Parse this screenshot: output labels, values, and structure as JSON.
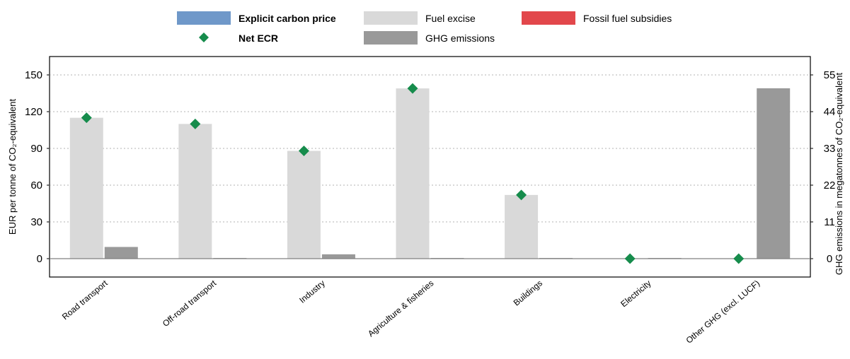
{
  "chart_data": {
    "type": "bar",
    "categories": [
      "Road transport",
      "Off-road transport",
      "Industry",
      "Agriculture & fisheries",
      "Buildings",
      "Electricity",
      "Other GHG (excl. LUCF)"
    ],
    "series": [
      {
        "name": "Explicit carbon price",
        "axis": "left",
        "kind": "bar",
        "color": "#6f98c9",
        "values": [
          0,
          0,
          0,
          0,
          0,
          0,
          0
        ]
      },
      {
        "name": "Fuel excise",
        "axis": "left",
        "kind": "bar",
        "color": "#d9d9d9",
        "values": [
          115,
          110,
          88,
          139,
          52,
          0,
          0
        ]
      },
      {
        "name": "Fossil fuel subsidies",
        "axis": "left",
        "kind": "bar",
        "color": "#e2474b",
        "values": [
          0,
          0,
          0,
          0,
          0,
          0,
          0
        ]
      },
      {
        "name": "Net ECR",
        "axis": "left",
        "kind": "marker",
        "color": "#168c4c",
        "values": [
          115,
          110,
          88,
          139,
          52,
          0,
          0
        ]
      },
      {
        "name": "GHG emissions",
        "axis": "right",
        "kind": "bar",
        "color": "#999999",
        "values": [
          3.5,
          0.2,
          1.3,
          0.2,
          0.2,
          0.2,
          51
        ]
      }
    ],
    "ylabel": "EUR per tonne of CO₂-equivalent",
    "ylabel_right": "GHG emissions in megatonnes of CO₂-equivalent",
    "ylim": [
      -15,
      165
    ],
    "ylim_right": [
      -5.5,
      60.5
    ],
    "yticks": [
      0,
      30,
      60,
      90,
      120,
      150
    ],
    "yticks_right": [
      0,
      11,
      22,
      33,
      44,
      55
    ],
    "grid": true,
    "legend_position": "top-center"
  }
}
